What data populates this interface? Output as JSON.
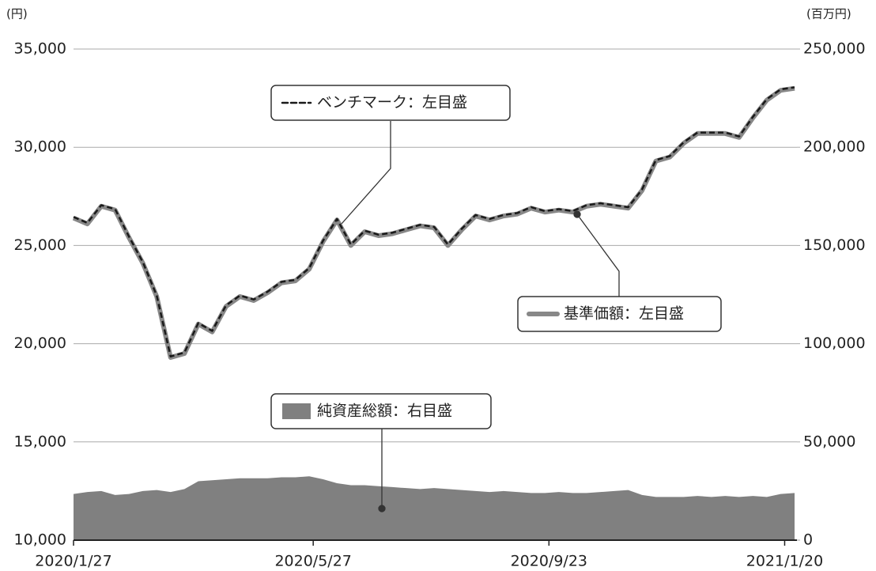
{
  "chart_data": {
    "type": "line",
    "y_unit_label": "(円)",
    "y2_unit_label": "(百万円)",
    "x": [
      "2020/1/27",
      "2020/2/3",
      "2020/2/10",
      "2020/2/17",
      "2020/2/24",
      "2020/3/2",
      "2020/3/9",
      "2020/3/16",
      "2020/3/23",
      "2020/3/30",
      "2020/4/6",
      "2020/4/13",
      "2020/4/20",
      "2020/4/27",
      "2020/5/4",
      "2020/5/11",
      "2020/5/18",
      "2020/5/25",
      "2020/6/1",
      "2020/6/8",
      "2020/6/15",
      "2020/6/22",
      "2020/6/29",
      "2020/7/6",
      "2020/7/13",
      "2020/7/20",
      "2020/7/27",
      "2020/8/3",
      "2020/8/10",
      "2020/8/17",
      "2020/8/24",
      "2020/8/31",
      "2020/9/7",
      "2020/9/14",
      "2020/9/21",
      "2020/9/28",
      "2020/10/5",
      "2020/10/12",
      "2020/10/19",
      "2020/10/26",
      "2020/11/2",
      "2020/11/9",
      "2020/11/16",
      "2020/11/23",
      "2020/11/30",
      "2020/12/7",
      "2020/12/14",
      "2020/12/21",
      "2020/12/28",
      "2021/1/4",
      "2021/1/11",
      "2021/1/18",
      "2021/1/25"
    ],
    "xticks": [
      "2020/1/27",
      "2020/5/27",
      "2020/9/23",
      "2021/1/20"
    ],
    "series": [
      {
        "name": "純資産総額：右目盛",
        "kind": "area",
        "axis": "y2",
        "color": "#808080",
        "values": [
          23500,
          24500,
          25000,
          23000,
          23500,
          25000,
          25500,
          24500,
          26000,
          30000,
          30500,
          31000,
          31500,
          31500,
          31500,
          32000,
          32000,
          32500,
          31000,
          29000,
          28000,
          28000,
          27500,
          27000,
          26500,
          26000,
          26500,
          26000,
          25500,
          25000,
          24500,
          25000,
          24500,
          24000,
          24000,
          24500,
          24000,
          24000,
          24500,
          25000,
          25500,
          23000,
          22000,
          22000,
          22000,
          22500,
          22000,
          22500,
          22000,
          22500,
          22000,
          23500,
          24000
        ]
      },
      {
        "name": "基準価額：左目盛",
        "kind": "line",
        "color": "#888888",
        "values": [
          26400,
          26100,
          27000,
          26800,
          25400,
          24100,
          22400,
          19300,
          19500,
          21000,
          20600,
          21900,
          22400,
          22200,
          22600,
          23100,
          23200,
          23800,
          25200,
          26300,
          25000,
          25700,
          25500,
          25600,
          25800,
          26000,
          25900,
          25000,
          25800,
          26500,
          26300,
          26500,
          26600,
          26900,
          26700,
          26800,
          26700,
          27000,
          27100,
          27000,
          26900,
          27800,
          29300,
          29500,
          30200,
          30700,
          30700,
          30700,
          30500,
          31500,
          32400,
          32900,
          33000
        ]
      },
      {
        "name": "ベンチマーク：左目盛",
        "kind": "dashed",
        "color": "#1a1a1a",
        "values": [
          26450,
          26150,
          27050,
          26850,
          25450,
          24150,
          22450,
          19350,
          19550,
          21050,
          20650,
          21950,
          22450,
          22250,
          22650,
          23150,
          23250,
          23850,
          25250,
          26350,
          25050,
          25750,
          25550,
          25650,
          25850,
          26050,
          25950,
          25050,
          25850,
          26550,
          26350,
          26550,
          26650,
          26950,
          26750,
          26850,
          26750,
          27050,
          27150,
          27050,
          26950,
          27850,
          29350,
          29550,
          30250,
          30750,
          30750,
          30750,
          30550,
          31550,
          32450,
          32950,
          33050
        ]
      }
    ],
    "ylim": [
      10000,
      35000
    ],
    "yticks": [
      {
        "value": 10000,
        "label": "10,000"
      },
      {
        "value": 15000,
        "label": "15,000"
      },
      {
        "value": 20000,
        "label": "20,000"
      },
      {
        "value": 25000,
        "label": "25,000"
      },
      {
        "value": 30000,
        "label": "30,000"
      },
      {
        "value": 35000,
        "label": "35,000"
      }
    ],
    "y2lim": [
      0,
      250000
    ],
    "y2ticks": [
      0,
      {
        "value": 50000,
        "label": "50,000"
      },
      {
        "value": 100000,
        "label": "100,000"
      },
      {
        "value": 150000,
        "label": "150,000"
      },
      {
        "value": 200000,
        "label": "200,000"
      },
      {
        "value": 250000,
        "label": "250,000"
      }
    ],
    "grid": true
  }
}
